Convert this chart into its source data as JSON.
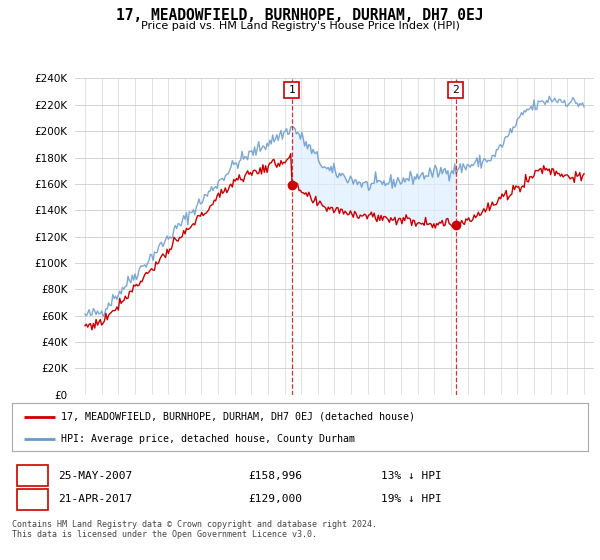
{
  "title": "17, MEADOWFIELD, BURNHOPE, DURHAM, DH7 0EJ",
  "subtitle": "Price paid vs. HM Land Registry's House Price Index (HPI)",
  "ylim": [
    0,
    240000
  ],
  "ytick_values": [
    0,
    20000,
    40000,
    60000,
    80000,
    100000,
    120000,
    140000,
    160000,
    180000,
    200000,
    220000,
    240000
  ],
  "legend_entry1": "17, MEADOWFIELD, BURNHOPE, DURHAM, DH7 0EJ (detached house)",
  "legend_entry2": "HPI: Average price, detached house, County Durham",
  "annotation1_date": "25-MAY-2007",
  "annotation1_price": "£158,996",
  "annotation1_hpi": "13% ↓ HPI",
  "annotation2_date": "21-APR-2017",
  "annotation2_price": "£129,000",
  "annotation2_hpi": "19% ↓ HPI",
  "footer": "Contains HM Land Registry data © Crown copyright and database right 2024.\nThis data is licensed under the Open Government Licence v3.0.",
  "sale_color": "#cc0000",
  "hpi_color": "#6699cc",
  "shade_color": "#ddeeff",
  "annotation_box_color": "#cc0000",
  "background_color": "#ffffff",
  "sale1_year": 2007.42,
  "sale1_price": 158996,
  "sale2_year": 2017.3,
  "sale2_price": 129000
}
